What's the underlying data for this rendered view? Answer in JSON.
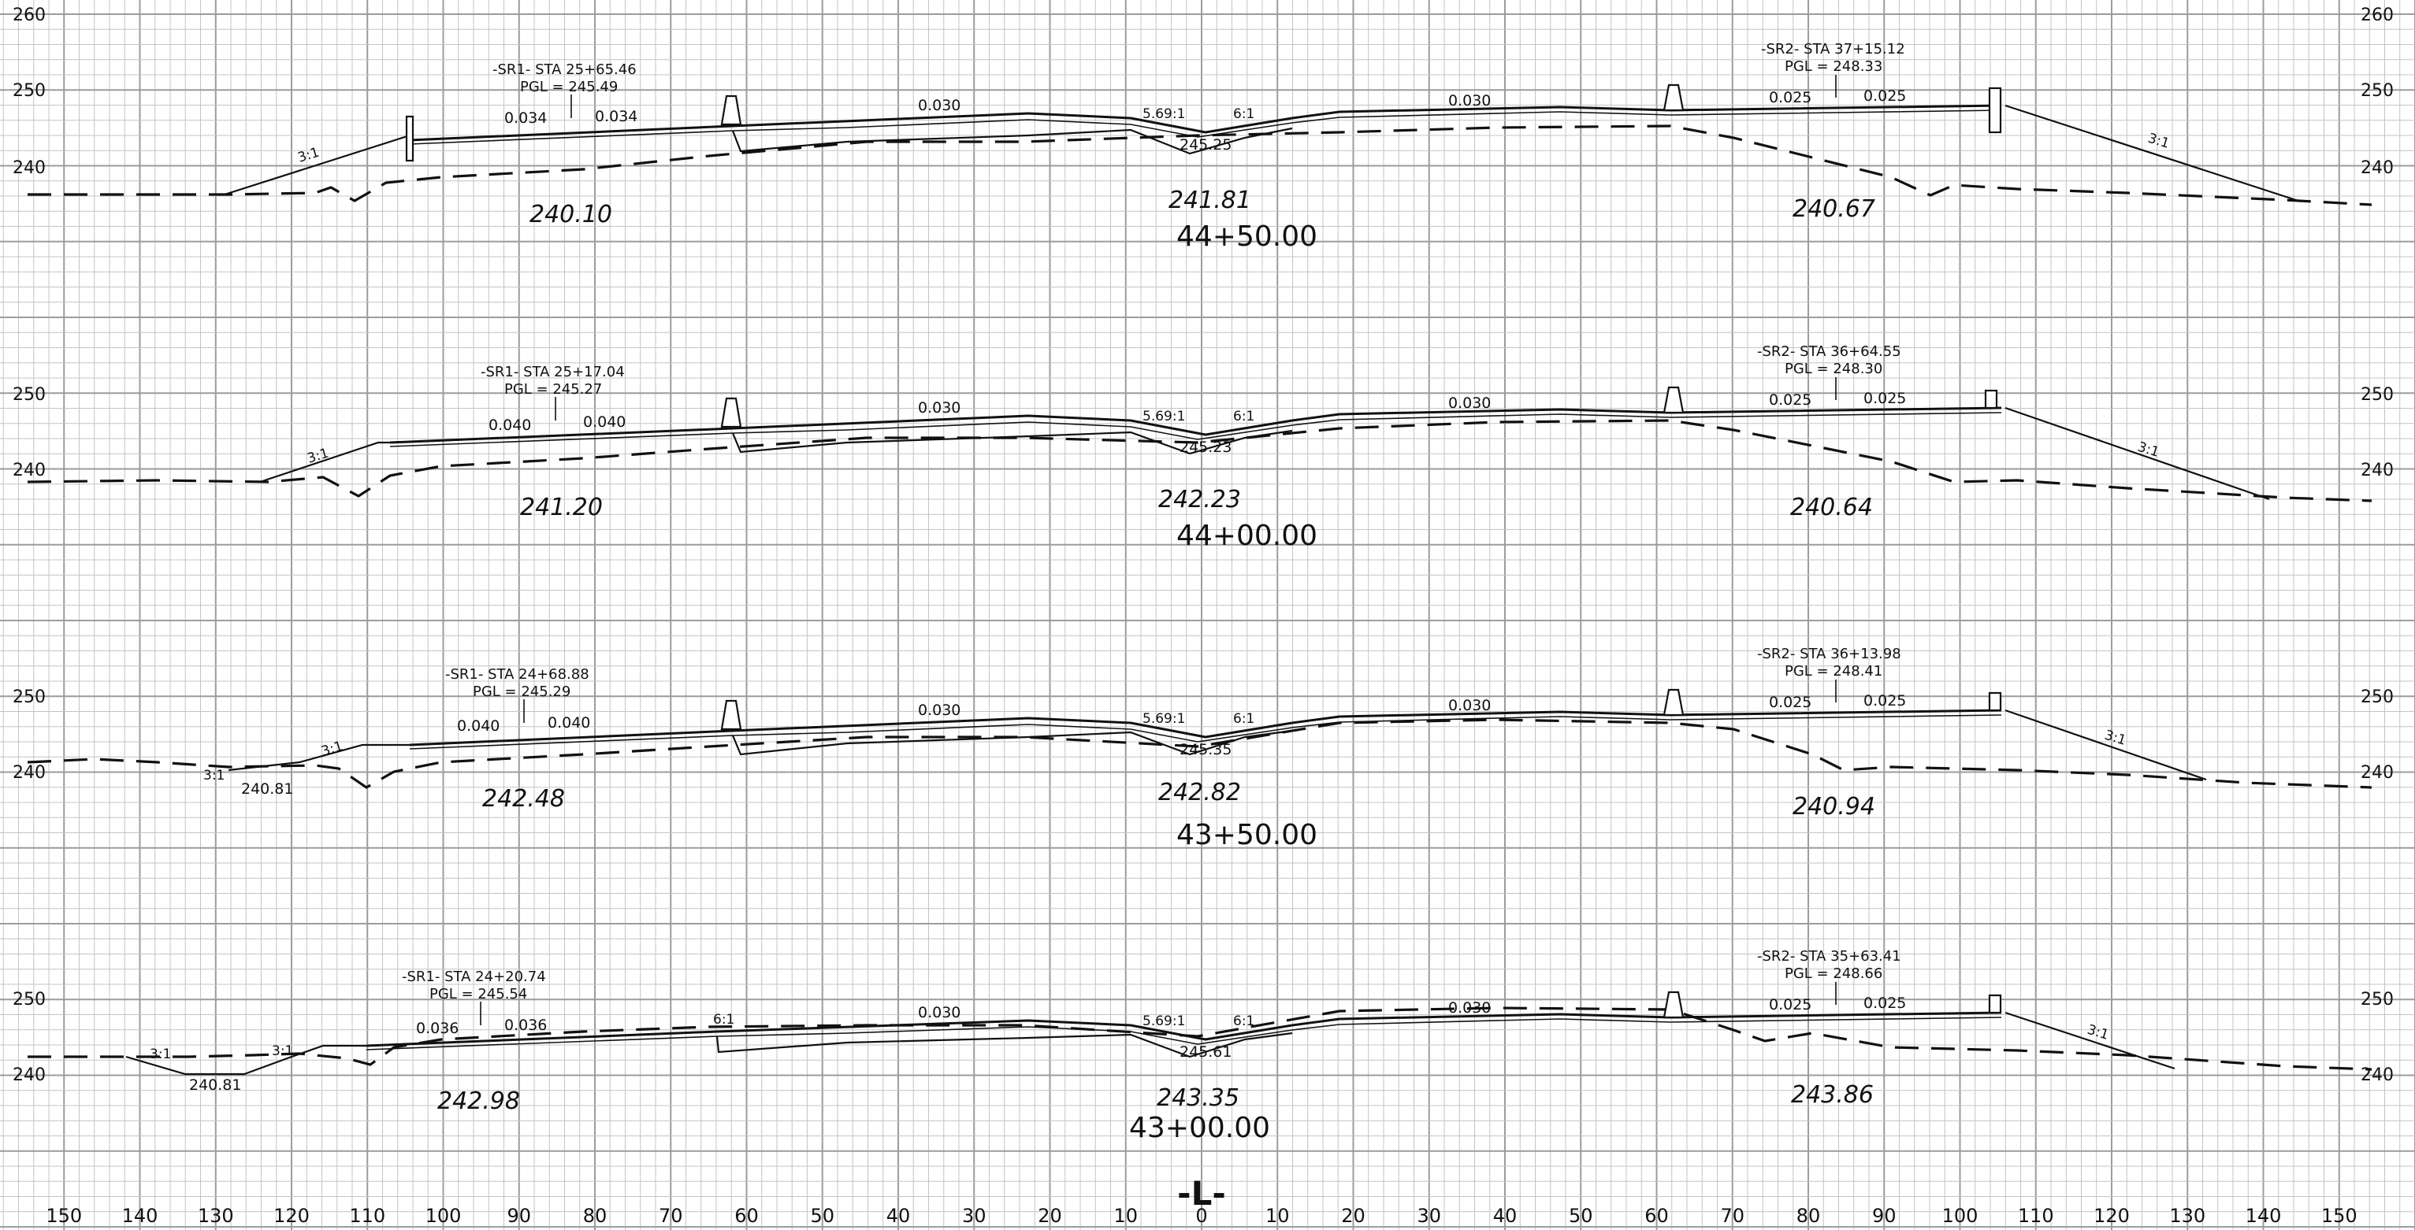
{
  "elevation_labels": {
    "left": [
      {
        "text": "260"
      },
      {
        "text": "250"
      },
      {
        "text": "240"
      },
      {
        "text": "250"
      },
      {
        "text": "240"
      },
      {
        "text": "250"
      },
      {
        "text": "240"
      },
      {
        "text": "250"
      },
      {
        "text": "240"
      }
    ],
    "right": [
      {
        "text": "260"
      },
      {
        "text": "250"
      },
      {
        "text": "240"
      },
      {
        "text": "250"
      },
      {
        "text": "240"
      },
      {
        "text": "250"
      },
      {
        "text": "240"
      },
      {
        "text": "250"
      },
      {
        "text": "240"
      }
    ]
  },
  "offset_labels": [
    "150",
    "140",
    "130",
    "120",
    "110",
    "100",
    "90",
    "80",
    "70",
    "60",
    "50",
    "40",
    "30",
    "20",
    "10",
    "0",
    "10",
    "20",
    "30",
    "40",
    "50",
    "60",
    "70",
    "80",
    "90",
    "100",
    "110",
    "120",
    "130",
    "140",
    "150"
  ],
  "centerline_label": "-L-",
  "sections": [
    {
      "station": "44+50.00",
      "sr1": {
        "sta": "-SR1- STA  25+65.46",
        "pgl": "PGL  =   245.49",
        "grade_left": "0.034",
        "grade_right": "0.034"
      },
      "sr2": {
        "sta": "-SR2- STA  37+15.12",
        "pgl": "PGL  =   248.33",
        "grade_left": "0.025",
        "grade_right": "0.025"
      },
      "grade_main_left": "0.030",
      "grade_main_right": "0.030",
      "median_left_slope": "5.69:1",
      "median_right_slope": "6:1",
      "median_elev": "245.25",
      "ground_left": "240.10",
      "ground_center": "241.81",
      "ground_right": "240.67",
      "fill_left": "3:1",
      "fill_right": "3:1",
      "extra": []
    },
    {
      "station": "44+00.00",
      "sr1": {
        "sta": "-SR1- STA  25+17.04",
        "pgl": "PGL  =   245.27",
        "grade_left": "0.040",
        "grade_right": "0.040"
      },
      "sr2": {
        "sta": "-SR2- STA  36+64.55",
        "pgl": "PGL  =   248.30",
        "grade_left": "0.025",
        "grade_right": "0.025"
      },
      "grade_main_left": "0.030",
      "grade_main_right": "0.030",
      "median_left_slope": "5.69:1",
      "median_right_slope": "6:1",
      "median_elev": "245.23",
      "ground_left": "241.20",
      "ground_center": "242.23",
      "ground_right": "240.64",
      "fill_left": "3:1",
      "fill_right": "3:1",
      "extra": []
    },
    {
      "station": "43+50.00",
      "sr1": {
        "sta": "-SR1- STA  24+68.88",
        "pgl": "PGL  =   245.29",
        "grade_left": "0.040",
        "grade_right": "0.040"
      },
      "sr2": {
        "sta": "-SR2- STA  36+13.98",
        "pgl": "PGL  =   248.41",
        "grade_left": "0.025",
        "grade_right": "0.025"
      },
      "grade_main_left": "0.030",
      "grade_main_right": "0.030",
      "median_left_slope": "5.69:1",
      "median_right_slope": "6:1",
      "median_elev": "245.35",
      "ground_left": "242.48",
      "ground_center": "242.82",
      "ground_right": "240.94",
      "fill_left": "3:1",
      "fill_right": "3:1",
      "extra": [
        "3:1",
        "240.81"
      ]
    },
    {
      "station": "43+00.00",
      "sr1": {
        "sta": "-SR1- STA  24+20.74",
        "pgl": "PGL  =   245.54",
        "grade_left": "0.036",
        "grade_right": "0.036"
      },
      "sr2": {
        "sta": "-SR2- STA  35+63.41",
        "pgl": "PGL  =   248.66",
        "grade_left": "0.025",
        "grade_right": "0.025"
      },
      "grade_main_left": "0.030",
      "grade_main_right": "0.030",
      "median_left_slope": "5.69:1",
      "median_right_slope": "6:1",
      "median_elev": "245.61",
      "ground_left": "242.98",
      "ground_center": "243.35",
      "ground_right": "243.86",
      "fill_left": "3:1",
      "fill_right": "3:1",
      "extra": [
        "3:1",
        "240.81",
        "6:1"
      ]
    }
  ]
}
